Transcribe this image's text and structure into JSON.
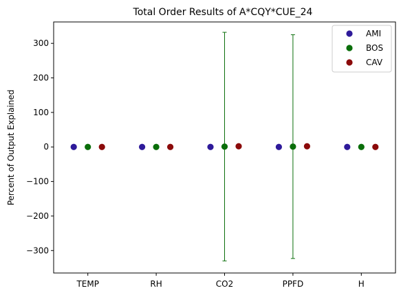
{
  "chart_data": {
    "type": "scatter",
    "title": "Total Order Results of A*CQY*CUE_24",
    "xlabel": "",
    "ylabel": "Percent of Output Explained",
    "categories": [
      "TEMP",
      "RH",
      "CO2",
      "PPFD",
      "H"
    ],
    "ylim": [
      -365,
      362
    ],
    "yticks": [
      -300,
      -200,
      -100,
      0,
      100,
      200,
      300
    ],
    "grid": false,
    "legend_position": "top-right",
    "series": [
      {
        "name": "AMI",
        "color": "#2e1a9a",
        "values": [
          0,
          0,
          0,
          0,
          0
        ],
        "error": [
          null,
          null,
          null,
          null,
          null
        ]
      },
      {
        "name": "BOS",
        "color": "#0a6e0a",
        "values": [
          0,
          0,
          1,
          1,
          0
        ],
        "error": [
          null,
          null,
          331,
          324,
          null
        ]
      },
      {
        "name": "CAV",
        "color": "#8b0a0a",
        "values": [
          0,
          0,
          2,
          2,
          0
        ],
        "error": [
          null,
          null,
          null,
          null,
          null
        ]
      }
    ]
  }
}
